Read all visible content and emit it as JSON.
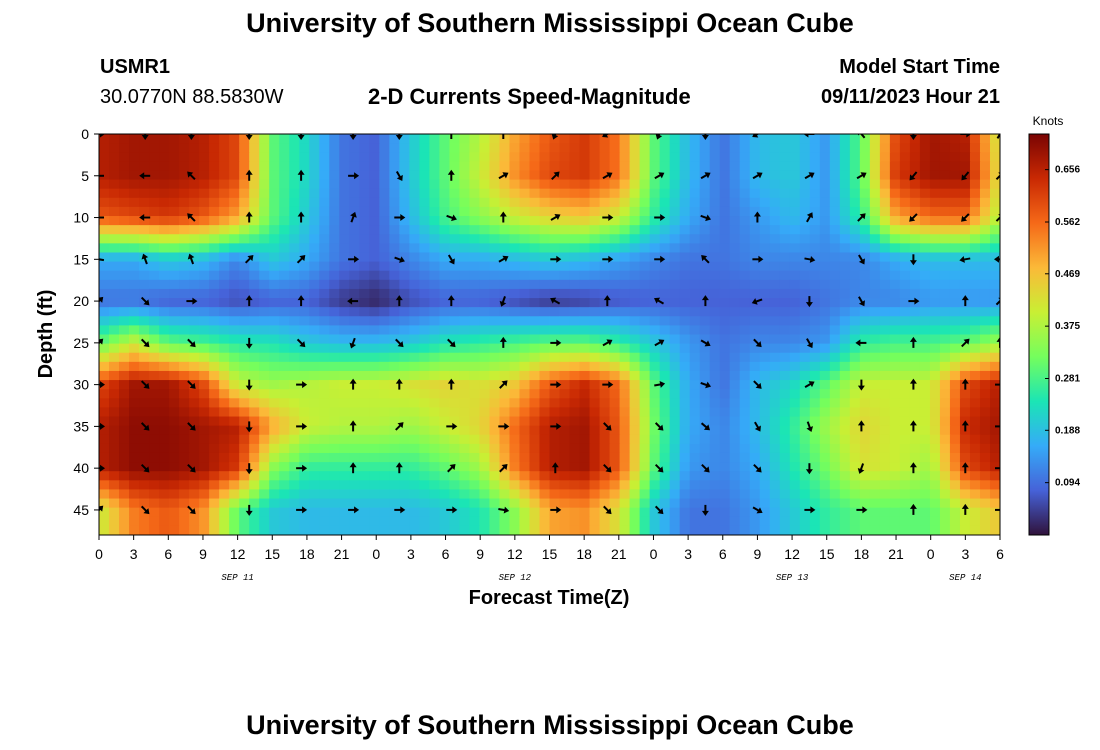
{
  "page": {
    "title": "University of Southern Mississippi Ocean Cube",
    "station": "USMR1",
    "coords": "30.0770N  88.5830W",
    "plot_title": "2-D Currents Speed-Magnitude",
    "model_start_label": "Model Start Time",
    "model_start_value": "09/11/2023 Hour 21",
    "bottom_title": "University of Southern Mississippi Ocean Cube"
  },
  "chart_data": {
    "type": "heatmap",
    "title": "2-D Currents Speed-Magnitude",
    "xlabel": "Forecast Time(Z)",
    "ylabel": "Depth (ft)",
    "colorbar_label": "Knots",
    "x_tick_labels": [
      "0",
      "3",
      "6",
      "9",
      "12",
      "15",
      "18",
      "21",
      "0",
      "3",
      "6",
      "9",
      "12",
      "15",
      "18",
      "21",
      "0",
      "3",
      "6",
      "9",
      "12",
      "15",
      "18",
      "21",
      "0",
      "3",
      "6"
    ],
    "x_hours_range": [
      0,
      78
    ],
    "date_labels": [
      {
        "text": "SEP 11",
        "hour": 12
      },
      {
        "text": "SEP 12",
        "hour": 36
      },
      {
        "text": "SEP 13",
        "hour": 60
      },
      {
        "text": "SEP 14",
        "hour": 75
      }
    ],
    "y_ticks": [
      0,
      5,
      10,
      15,
      20,
      25,
      30,
      35,
      40,
      45
    ],
    "y_range": [
      0,
      48
    ],
    "colorbar_ticks": [
      0.656,
      0.562,
      0.469,
      0.375,
      0.281,
      0.188,
      0.094
    ],
    "colorbar_range": [
      0.0,
      0.72
    ],
    "colors": {
      "scale": [
        "#30123b",
        "#4662d8",
        "#35abf8",
        "#1be5b5",
        "#74fe5d",
        "#c9ef34",
        "#fbb938",
        "#f56918",
        "#c92903",
        "#7a0403"
      ]
    },
    "speed_grid_depths": [
      0,
      5,
      10,
      15,
      20,
      25,
      30,
      35,
      40,
      45
    ],
    "speed_grid_hours": [
      0,
      3,
      6,
      9,
      12,
      15,
      18,
      21,
      24,
      27,
      30,
      33,
      36,
      39,
      42,
      45,
      48,
      51,
      54,
      57,
      60,
      63,
      66,
      69,
      72,
      75,
      78
    ],
    "speed": [
      [
        0.66,
        0.68,
        0.68,
        0.66,
        0.6,
        0.3,
        0.22,
        0.1,
        0.08,
        0.2,
        0.3,
        0.38,
        0.5,
        0.58,
        0.62,
        0.55,
        0.3,
        0.18,
        0.1,
        0.18,
        0.2,
        0.14,
        0.3,
        0.6,
        0.68,
        0.66,
        0.4
      ],
      [
        0.66,
        0.68,
        0.68,
        0.66,
        0.6,
        0.3,
        0.22,
        0.1,
        0.08,
        0.2,
        0.3,
        0.4,
        0.52,
        0.6,
        0.62,
        0.55,
        0.3,
        0.18,
        0.1,
        0.18,
        0.2,
        0.14,
        0.3,
        0.62,
        0.68,
        0.68,
        0.42
      ],
      [
        0.58,
        0.6,
        0.62,
        0.58,
        0.5,
        0.3,
        0.2,
        0.1,
        0.08,
        0.18,
        0.28,
        0.34,
        0.4,
        0.44,
        0.46,
        0.4,
        0.26,
        0.16,
        0.1,
        0.14,
        0.18,
        0.14,
        0.26,
        0.5,
        0.56,
        0.56,
        0.38
      ],
      [
        0.16,
        0.16,
        0.2,
        0.18,
        0.12,
        0.2,
        0.16,
        0.1,
        0.08,
        0.12,
        0.16,
        0.16,
        0.18,
        0.2,
        0.18,
        0.15,
        0.12,
        0.1,
        0.1,
        0.12,
        0.12,
        0.12,
        0.12,
        0.16,
        0.18,
        0.18,
        0.18
      ],
      [
        0.1,
        0.1,
        0.08,
        0.08,
        0.06,
        0.08,
        0.08,
        0.04,
        0.02,
        0.06,
        0.08,
        0.08,
        0.06,
        0.04,
        0.05,
        0.07,
        0.08,
        0.08,
        0.08,
        0.08,
        0.08,
        0.1,
        0.12,
        0.12,
        0.14,
        0.14,
        0.14
      ],
      [
        0.3,
        0.4,
        0.3,
        0.28,
        0.25,
        0.24,
        0.2,
        0.18,
        0.18,
        0.2,
        0.24,
        0.26,
        0.28,
        0.3,
        0.3,
        0.26,
        0.2,
        0.14,
        0.1,
        0.12,
        0.12,
        0.14,
        0.26,
        0.28,
        0.28,
        0.3,
        0.36
      ],
      [
        0.6,
        0.68,
        0.68,
        0.6,
        0.4,
        0.36,
        0.38,
        0.4,
        0.4,
        0.42,
        0.44,
        0.42,
        0.46,
        0.58,
        0.64,
        0.56,
        0.3,
        0.16,
        0.1,
        0.18,
        0.22,
        0.3,
        0.4,
        0.4,
        0.4,
        0.6,
        0.66
      ],
      [
        0.66,
        0.7,
        0.7,
        0.68,
        0.66,
        0.5,
        0.4,
        0.38,
        0.38,
        0.36,
        0.4,
        0.44,
        0.56,
        0.66,
        0.68,
        0.58,
        0.32,
        0.16,
        0.12,
        0.18,
        0.26,
        0.36,
        0.44,
        0.4,
        0.4,
        0.64,
        0.68
      ],
      [
        0.66,
        0.7,
        0.7,
        0.68,
        0.62,
        0.34,
        0.26,
        0.26,
        0.26,
        0.26,
        0.3,
        0.36,
        0.54,
        0.66,
        0.68,
        0.58,
        0.3,
        0.14,
        0.12,
        0.16,
        0.24,
        0.32,
        0.42,
        0.4,
        0.36,
        0.6,
        0.66
      ],
      [
        0.4,
        0.54,
        0.58,
        0.52,
        0.3,
        0.2,
        0.18,
        0.18,
        0.18,
        0.18,
        0.2,
        0.24,
        0.34,
        0.5,
        0.52,
        0.42,
        0.2,
        0.1,
        0.1,
        0.14,
        0.2,
        0.26,
        0.3,
        0.3,
        0.3,
        0.4,
        0.46
      ]
    ],
    "arrow_depths": [
      0,
      5,
      10,
      15,
      20,
      25,
      30,
      35,
      40,
      45
    ],
    "arrow_hours": [
      0,
      4,
      8,
      13,
      17.5,
      22,
      26,
      30.5,
      35,
      39.5,
      44,
      48.5,
      52.5,
      57,
      61.5,
      66,
      70.5,
      75,
      78
    ],
    "arrow_dirs_deg": [
      [
        90,
        180,
        180,
        180,
        180,
        180,
        180,
        0,
        0,
        200,
        240,
        200,
        180,
        240,
        270,
        320,
        180,
        90,
        30
      ],
      [
        270,
        270,
        315,
        0,
        0,
        90,
        150,
        0,
        60,
        45,
        60,
        60,
        60,
        60,
        60,
        60,
        220,
        220,
        45
      ],
      [
        270,
        270,
        315,
        0,
        0,
        20,
        90,
        110,
        0,
        60,
        90,
        90,
        110,
        0,
        30,
        45,
        225,
        225,
        45
      ],
      [
        280,
        340,
        340,
        45,
        45,
        90,
        110,
        150,
        60,
        90,
        90,
        90,
        315,
        90,
        100,
        150,
        180,
        260,
        270
      ],
      [
        45,
        135,
        90,
        0,
        0,
        270,
        0,
        0,
        200,
        300,
        0,
        300,
        0,
        250,
        180,
        150,
        90,
        0,
        45
      ],
      [
        45,
        135,
        135,
        180,
        135,
        200,
        135,
        135,
        0,
        90,
        60,
        60,
        120,
        135,
        150,
        270,
        0,
        45,
        0
      ],
      [
        90,
        135,
        135,
        180,
        90,
        0,
        0,
        0,
        45,
        90,
        90,
        80,
        110,
        135,
        60,
        180,
        0,
        0,
        90
      ],
      [
        90,
        135,
        135,
        180,
        90,
        0,
        45,
        90,
        90,
        90,
        135,
        135,
        130,
        150,
        160,
        0,
        0,
        0,
        90
      ],
      [
        90,
        135,
        135,
        180,
        90,
        0,
        0,
        45,
        45,
        0,
        135,
        135,
        135,
        135,
        180,
        200,
        0,
        0,
        90
      ],
      [
        45,
        135,
        135,
        180,
        90,
        90,
        90,
        90,
        100,
        90,
        135,
        135,
        180,
        120,
        90,
        90,
        0,
        0,
        90
      ]
    ]
  }
}
